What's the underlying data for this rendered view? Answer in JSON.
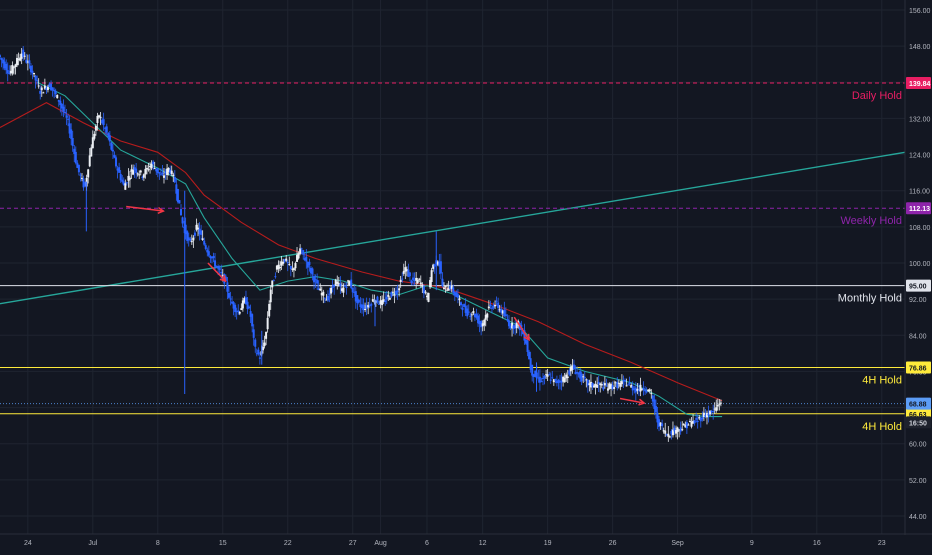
{
  "chart_data": {
    "type": "candlestick",
    "title": "",
    "xlabel": "",
    "ylabel": "",
    "ylim": [
      40,
      158
    ],
    "grid": true,
    "y_ticks": [
      "156.00",
      "148.00",
      "140.00",
      "132.00",
      "124.00",
      "116.00",
      "108.00",
      "100.00",
      "92.00",
      "84.00",
      "76.00",
      "68.00",
      "60.00",
      "52.00",
      "44.00"
    ],
    "x_ticks": [
      {
        "label": "24",
        "day": 0
      },
      {
        "label": "Jul",
        "day": 7
      },
      {
        "label": "8",
        "day": 14
      },
      {
        "label": "15",
        "day": 21
      },
      {
        "label": "22",
        "day": 28
      },
      {
        "label": "27",
        "day": 35
      },
      {
        "label": "Aug",
        "day": 38
      },
      {
        "label": "6",
        "day": 43
      },
      {
        "label": "12",
        "day": 49
      },
      {
        "label": "19",
        "day": 56
      },
      {
        "label": "26",
        "day": 63
      },
      {
        "label": "Sep",
        "day": 70
      },
      {
        "label": "9",
        "day": 78
      },
      {
        "label": "16",
        "day": 85
      },
      {
        "label": "23",
        "day": 92
      }
    ],
    "x_range_days": [
      -3,
      94.5
    ],
    "price_path": [
      [
        -3.0,
        146.0
      ],
      [
        -1.8,
        142.0
      ],
      [
        -0.5,
        146.5
      ],
      [
        0.5,
        143.0
      ],
      [
        1.5,
        138.0
      ],
      [
        2.5,
        139.5
      ],
      [
        3.5,
        136.0
      ],
      [
        4.5,
        131.0
      ],
      [
        5.5,
        121.0
      ],
      [
        6.3,
        116.5
      ],
      [
        7.0,
        126.0
      ],
      [
        7.8,
        133.0
      ],
      [
        8.8,
        128.0
      ],
      [
        9.6,
        122.0
      ],
      [
        10.5,
        117.0
      ],
      [
        11.5,
        121.0
      ],
      [
        12.5,
        119.5
      ],
      [
        13.5,
        122.0
      ],
      [
        14.6,
        119.0
      ],
      [
        15.4,
        121.0
      ],
      [
        16.0,
        118.0
      ],
      [
        16.8,
        109.0
      ],
      [
        17.6,
        104.0
      ],
      [
        18.4,
        108.0
      ],
      [
        19.2,
        104.0
      ],
      [
        20.0,
        101.0
      ],
      [
        20.8,
        98.0
      ],
      [
        21.4,
        96.0
      ],
      [
        22.0,
        91.5
      ],
      [
        22.8,
        89.0
      ],
      [
        23.6,
        92.0
      ],
      [
        24.2,
        88.0
      ],
      [
        24.6,
        81.0
      ],
      [
        25.2,
        79.0
      ],
      [
        25.8,
        84.0
      ],
      [
        26.3,
        94.0
      ],
      [
        27.0,
        99.0
      ],
      [
        27.8,
        101.0
      ],
      [
        28.6,
        98.0
      ],
      [
        29.5,
        103.0
      ],
      [
        30.5,
        99.0
      ],
      [
        31.5,
        94.0
      ],
      [
        32.4,
        92.0
      ],
      [
        33.3,
        96.0
      ],
      [
        34.0,
        94.0
      ],
      [
        34.8,
        96.0
      ],
      [
        35.7,
        91.0
      ],
      [
        36.5,
        90.0
      ],
      [
        37.5,
        92.0
      ],
      [
        38.3,
        91.0
      ],
      [
        39.2,
        93.0
      ],
      [
        40.0,
        94.0
      ],
      [
        40.8,
        99.0
      ],
      [
        41.5,
        96.0
      ],
      [
        42.4,
        96.0
      ],
      [
        43.2,
        92.0
      ],
      [
        43.7,
        99.0
      ],
      [
        44.4,
        101.0
      ],
      [
        44.9,
        94.0
      ],
      [
        45.6,
        95.0
      ],
      [
        46.5,
        92.0
      ],
      [
        47.4,
        89.0
      ],
      [
        48.2,
        89.0
      ],
      [
        49.0,
        86.0
      ],
      [
        49.8,
        90.0
      ],
      [
        50.6,
        91.0
      ],
      [
        51.3,
        89.0
      ],
      [
        52.2,
        86.0
      ],
      [
        53.0,
        86.5
      ],
      [
        53.8,
        83.0
      ],
      [
        54.4,
        76.0
      ],
      [
        55.3,
        74.0
      ],
      [
        56.2,
        75.0
      ],
      [
        57.0,
        73.5
      ],
      [
        58.0,
        74.5
      ],
      [
        58.8,
        77.0
      ],
      [
        59.6,
        75.0
      ],
      [
        60.6,
        73.0
      ],
      [
        61.6,
        73.0
      ],
      [
        62.6,
        72.5
      ],
      [
        63.6,
        73.0
      ],
      [
        64.6,
        73.5
      ],
      [
        65.6,
        72.0
      ],
      [
        66.6,
        72.5
      ],
      [
        67.3,
        71.0
      ],
      [
        68.0,
        65.0
      ],
      [
        69.0,
        62.0
      ],
      [
        69.8,
        63.0
      ],
      [
        70.6,
        63.5
      ],
      [
        71.4,
        64.5
      ],
      [
        72.2,
        65.0
      ],
      [
        73.1,
        66.5
      ],
      [
        74.0,
        67.0
      ],
      [
        74.8,
        69.5
      ]
    ],
    "spike_wicks": [
      {
        "day": 16.9,
        "high": 116.0,
        "low": 71.0
      },
      {
        "day": 6.3,
        "high": 118.0,
        "low": 107.0
      },
      {
        "day": 44.0,
        "high": 107.0,
        "low": 94.0
      },
      {
        "day": 25.2,
        "high": 85.0,
        "low": 77.5
      },
      {
        "day": 37.4,
        "high": 92.0,
        "low": 86.0
      },
      {
        "day": 54.8,
        "high": 78.0,
        "low": 71.5
      }
    ],
    "moving_averages": [
      {
        "color": "#b71c1c",
        "points": [
          [
            -3,
            130.0
          ],
          [
            2,
            135.5
          ],
          [
            6,
            131.0
          ],
          [
            10,
            127.0
          ],
          [
            14,
            124.5
          ],
          [
            17,
            120.0
          ],
          [
            19,
            115.0
          ],
          [
            23,
            109.0
          ],
          [
            27,
            104.0
          ],
          [
            31,
            101.0
          ],
          [
            36,
            98.0
          ],
          [
            40,
            96.0
          ],
          [
            45,
            94.5
          ],
          [
            50,
            91.0
          ],
          [
            55,
            87.0
          ],
          [
            60,
            82.0
          ],
          [
            65,
            78.0
          ],
          [
            70,
            73.5
          ],
          [
            74.8,
            69.5
          ]
        ]
      },
      {
        "color": "#26a69a",
        "points": [
          [
            1,
            140.0
          ],
          [
            4,
            137.0
          ],
          [
            7,
            131.0
          ],
          [
            10,
            125.0
          ],
          [
            14,
            121.0
          ],
          [
            17,
            117.5
          ],
          [
            19,
            110.0
          ],
          [
            22,
            101.0
          ],
          [
            25,
            94.0
          ],
          [
            28,
            96.0
          ],
          [
            31,
            97.0
          ],
          [
            34,
            96.0
          ],
          [
            37,
            94.0
          ],
          [
            40,
            93.0
          ],
          [
            43,
            95.0
          ],
          [
            46,
            93.0
          ],
          [
            50,
            89.0
          ],
          [
            53,
            86.0
          ],
          [
            56,
            79.0
          ],
          [
            60,
            76.0
          ],
          [
            65,
            73.5
          ],
          [
            68,
            70.5
          ],
          [
            71,
            66.5
          ],
          [
            73,
            66.0
          ],
          [
            74.8,
            66.0
          ]
        ]
      }
    ],
    "trendline": {
      "color": "#26a69a",
      "from": [
        -3,
        91.0
      ],
      "to": [
        94.5,
        124.5
      ]
    },
    "levels": [
      {
        "price": 139.84,
        "color": "#e91e63",
        "dashed": true,
        "label": "Daily Hold",
        "tag": "139.84"
      },
      {
        "price": 112.13,
        "color": "#8e24aa",
        "dashed": true,
        "label": "Weekly Hold",
        "tag": "112.13"
      },
      {
        "price": 95.0,
        "color": "#e0e3eb",
        "dashed": false,
        "label": "Monthly Hold",
        "tag": "95.00"
      },
      {
        "price": 76.86,
        "color": "#ffeb3b",
        "dashed": false,
        "label": "4H Hold",
        "tag": "76.86"
      },
      {
        "price": 66.63,
        "color": "#ffeb3b",
        "dashed": false,
        "label": "4H Hold",
        "tag": "66.63"
      }
    ],
    "extra_tags": [
      {
        "price": 68.88,
        "text": "68.88",
        "color": "#5b9cf6",
        "text_color": "#131722"
      },
      {
        "price": 66.63,
        "text": "16:50",
        "color": "#1e222d",
        "text_color": "#d1d4dc",
        "offset": 1.9
      }
    ],
    "current_price_line": {
      "price": 68.88,
      "color": "#5b9cf6"
    },
    "arrows": [
      {
        "day": 10.6,
        "price": 112.5,
        "to_day": 14.6,
        "to_price": 111.5
      },
      {
        "day": 19.4,
        "price": 100.0,
        "to_day": 21.3,
        "to_price": 96.0
      },
      {
        "day": 52.4,
        "price": 88.0,
        "to_day": 54.0,
        "to_price": 83.0
      },
      {
        "day": 63.8,
        "price": 70.0,
        "to_day": 66.4,
        "to_price": 69.0
      }
    ]
  }
}
